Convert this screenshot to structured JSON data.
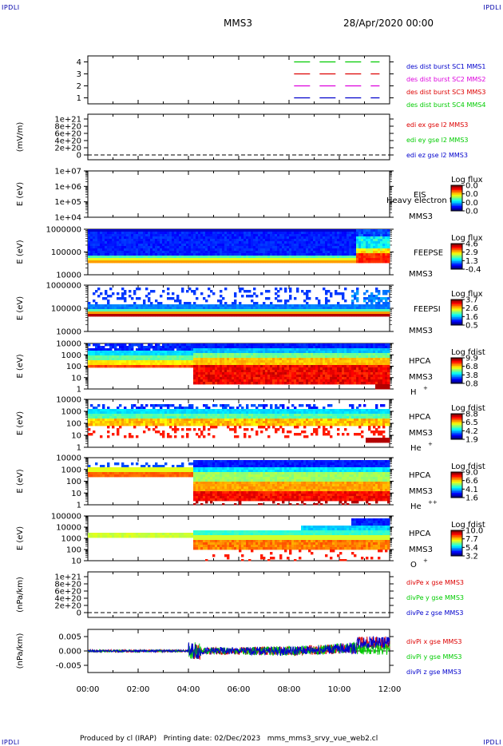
{
  "header": {
    "corner_label": "IPDLI",
    "title": "MMS3",
    "datetime": "28/Apr/2020 00:00"
  },
  "footer": {
    "text": "Produced by cl (IRAP)   Printing date: 02/Dec/2023   mms_mms3_srvy_vue_web2.cl"
  },
  "x_axis": {
    "ticks": [
      "00:00",
      "02:00",
      "04:00",
      "06:00",
      "08:00",
      "10:00",
      "12:00"
    ],
    "range_hours": [
      0,
      12
    ]
  },
  "colors": {
    "red": "#dd0000",
    "green": "#00cc00",
    "blue": "#0000cc",
    "magenta": "#dd00dd"
  },
  "chart_data": [
    {
      "id": "sc-burst",
      "type": "line",
      "ylabel": "",
      "yticks": [
        "1",
        "2",
        "3",
        "4"
      ],
      "ylim": [
        0.5,
        4.5
      ],
      "series": [
        {
          "name": "des dist burst SC1 MMS1",
          "color": "#00cc00",
          "level": 4,
          "x": [
            8.2,
            11.6
          ]
        },
        {
          "name": "des dist burst SC2 MMS2",
          "color": "#dd0000",
          "level": 3,
          "x": [
            8.2,
            11.6
          ]
        },
        {
          "name": "des dist burst SC3 MMS3",
          "color": "#dd00dd",
          "level": 2,
          "x": [
            8.2,
            11.6
          ]
        },
        {
          "name": "des dist burst SC4 MMS4",
          "color": "#0000cc",
          "level": 1,
          "x": [
            8.2,
            11.6
          ]
        }
      ],
      "legend_colors": [
        "#0000cc",
        "#dd00dd",
        "#dd0000",
        "#00cc00"
      ]
    },
    {
      "id": "edi-e",
      "type": "line",
      "ylabel": "(mV/m)",
      "yticks": [
        "1e+21",
        "8e+20",
        "6e+20",
        "4e+20",
        "2e+20",
        "0"
      ],
      "ylim": [
        0,
        1e+21
      ],
      "series": [
        {
          "name": "edi ex gse l2 MMS3",
          "color": "#dd0000"
        },
        {
          "name": "edi ey gse l2 MMS3",
          "color": "#00cc00"
        },
        {
          "name": "edi ez gse l2 MMS3",
          "color": "#0000cc"
        }
      ]
    },
    {
      "id": "eis",
      "type": "heatmap",
      "ylabel": "E (eV)",
      "yticks": [
        "1e+07",
        "1e+06",
        "1e+05",
        "1e+04"
      ],
      "log": true,
      "labels": [
        "EIS",
        "MMS3"
      ],
      "annotation": "Heavy electron to",
      "colorbar": {
        "title": "Log flux",
        "ticks": [
          "0.0",
          "0.0",
          "0.0",
          "0.0"
        ]
      }
    },
    {
      "id": "feepse",
      "type": "heatmap",
      "ylabel": "E (eV)",
      "yticks": [
        "1000000",
        "100000",
        "10000"
      ],
      "log": true,
      "labels": [
        "FEEPSE",
        "MMS3"
      ],
      "colorbar": {
        "title": "Log flux",
        "ticks": [
          "4.6",
          "2.9",
          "1.3",
          "-0.4"
        ]
      }
    },
    {
      "id": "feepsi",
      "type": "heatmap",
      "ylabel": "E (eV)",
      "yticks": [
        "1000000",
        "100000",
        "10000"
      ],
      "log": true,
      "labels": [
        "FEEPSI",
        "MMS3"
      ],
      "colorbar": {
        "title": "Log flux",
        "ticks": [
          "3.7",
          "2.6",
          "1.6",
          "0.5"
        ]
      }
    },
    {
      "id": "hpca-h",
      "type": "heatmap",
      "ylabel": "E (eV)",
      "yticks": [
        "10000",
        "1000",
        "100",
        "10",
        "1"
      ],
      "log": true,
      "labels": [
        "HPCA",
        "MMS3"
      ],
      "species": "H",
      "charge": "+",
      "colorbar": {
        "title": "Log fdist",
        "ticks": [
          "9.9",
          "6.8",
          "3.8",
          "0.8"
        ]
      }
    },
    {
      "id": "hpca-he",
      "type": "heatmap",
      "ylabel": "E (eV)",
      "yticks": [
        "10000",
        "1000",
        "100",
        "10",
        "1"
      ],
      "log": true,
      "labels": [
        "HPCA",
        "MMS3"
      ],
      "species": "He",
      "charge": "+",
      "colorbar": {
        "title": "Log fdist",
        "ticks": [
          "8.8",
          "6.5",
          "4.2",
          "1.9"
        ]
      }
    },
    {
      "id": "hpca-he2",
      "type": "heatmap",
      "ylabel": "E (eV)",
      "yticks": [
        "10000",
        "1000",
        "100",
        "10",
        "1"
      ],
      "log": true,
      "labels": [
        "HPCA",
        "MMS3"
      ],
      "species": "He",
      "charge": "++",
      "colorbar": {
        "title": "Log fdist",
        "ticks": [
          "9.0",
          "6.6",
          "4.1",
          "1.6"
        ]
      }
    },
    {
      "id": "hpca-o",
      "type": "heatmap",
      "ylabel": "E (eV)",
      "yticks": [
        "100000",
        "10000",
        "1000",
        "100",
        "10"
      ],
      "log": true,
      "labels": [
        "HPCA",
        "MMS3"
      ],
      "species": "O",
      "charge": "+",
      "colorbar": {
        "title": "Log fdist",
        "ticks": [
          "10.0",
          "7.7",
          "5.4",
          "3.2"
        ]
      }
    },
    {
      "id": "divpe",
      "type": "line",
      "ylabel": "(nPa/km)",
      "yticks": [
        "1e+21",
        "8e+20",
        "6e+20",
        "4e+20",
        "2e+20",
        "0"
      ],
      "ylim": [
        0,
        1e+21
      ],
      "series": [
        {
          "name": "divPe x gse MMS3",
          "color": "#dd0000"
        },
        {
          "name": "divPe y gse MMS3",
          "color": "#00cc00"
        },
        {
          "name": "divPe z gse MMS3",
          "color": "#0000cc"
        }
      ]
    },
    {
      "id": "divpi",
      "type": "line",
      "ylabel": "(nPa/km)",
      "yticks": [
        "0.005",
        "0.000",
        "-0.005"
      ],
      "ylim": [
        -0.0075,
        0.0075
      ],
      "series": [
        {
          "name": "divPi x gse MMS3",
          "color": "#dd0000"
        },
        {
          "name": "divPi y gse MMS3",
          "color": "#00cc00"
        },
        {
          "name": "divPi z gse MMS3",
          "color": "#0000cc"
        }
      ]
    }
  ]
}
